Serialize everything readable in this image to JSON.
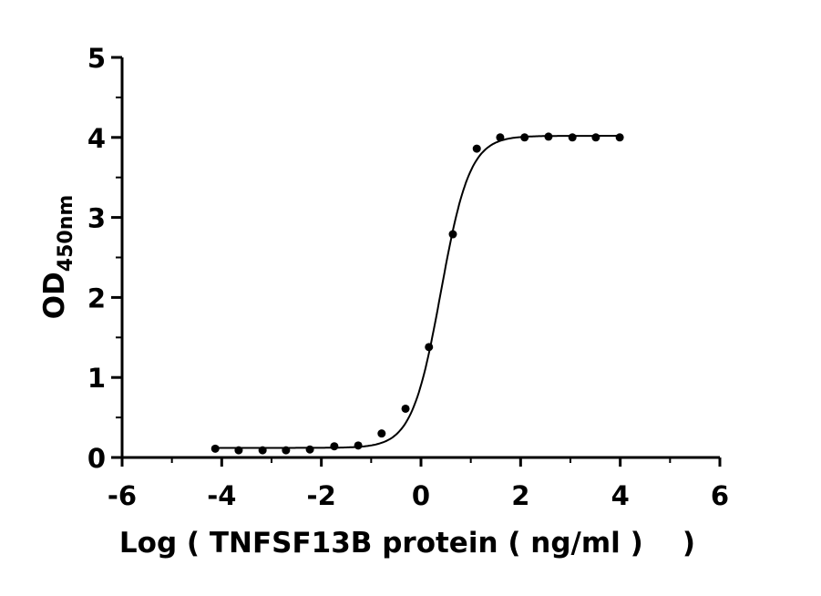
{
  "chart_data": {
    "type": "scatter",
    "xlabel": "Log ( TNFSF13B protein ( ng/ml )    )",
    "ylabel_main": "OD",
    "ylabel_sub": "450nm",
    "xlim": [
      -6,
      6
    ],
    "ylim": [
      0,
      5
    ],
    "xticks": [
      "-6",
      "-4",
      "-2",
      "0",
      "2",
      "4",
      "6"
    ],
    "yticks": [
      "0",
      "1",
      "2",
      "3",
      "4",
      "5"
    ],
    "grid": false,
    "points": [
      {
        "x": -4.13,
        "y": 0.11
      },
      {
        "x": -3.66,
        "y": 0.09
      },
      {
        "x": -3.18,
        "y": 0.09
      },
      {
        "x": -2.71,
        "y": 0.09
      },
      {
        "x": -2.23,
        "y": 0.1
      },
      {
        "x": -1.74,
        "y": 0.14
      },
      {
        "x": -1.26,
        "y": 0.15
      },
      {
        "x": -0.79,
        "y": 0.3
      },
      {
        "x": -0.31,
        "y": 0.61
      },
      {
        "x": 0.16,
        "y": 1.38
      },
      {
        "x": 0.64,
        "y": 2.79
      },
      {
        "x": 1.12,
        "y": 3.86
      },
      {
        "x": 1.59,
        "y": 4.0
      },
      {
        "x": 2.08,
        "y": 4.0
      },
      {
        "x": 2.56,
        "y": 4.01
      },
      {
        "x": 3.04,
        "y": 4.0
      },
      {
        "x": 3.51,
        "y": 4.0
      },
      {
        "x": 3.99,
        "y": 4.0
      }
    ],
    "fit": {
      "model": "4PL",
      "bottom": 0.12,
      "top": 4.02,
      "logEC50": 0.4,
      "hill": 1.5,
      "x_range": [
        -4.13,
        3.99
      ]
    }
  }
}
